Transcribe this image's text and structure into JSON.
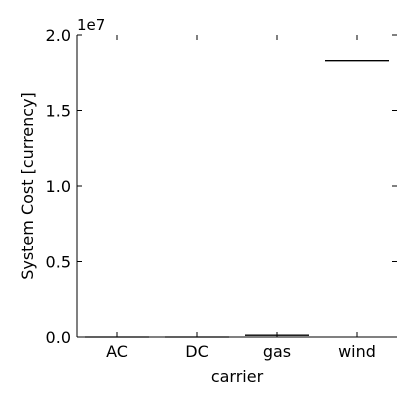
{
  "chart_data": {
    "type": "bar",
    "categories": [
      "AC",
      "DC",
      "gas",
      "wind"
    ],
    "values": [
      0,
      0,
      120000,
      18300000
    ],
    "xlabel": "carrier",
    "ylabel": "System Cost [currency]",
    "ylim": [
      0,
      20000000
    ],
    "yticks": [
      0.0,
      0.5,
      1.0,
      1.5,
      2.0
    ],
    "ytick_labels": [
      "0.0",
      "0.5",
      "1.0",
      "1.5",
      "2.0"
    ],
    "offset_label": "1e7",
    "grid": false,
    "legend": "none",
    "colors": {
      "axis": "#000000",
      "bar": "#000000",
      "background": "#ffffff"
    }
  }
}
